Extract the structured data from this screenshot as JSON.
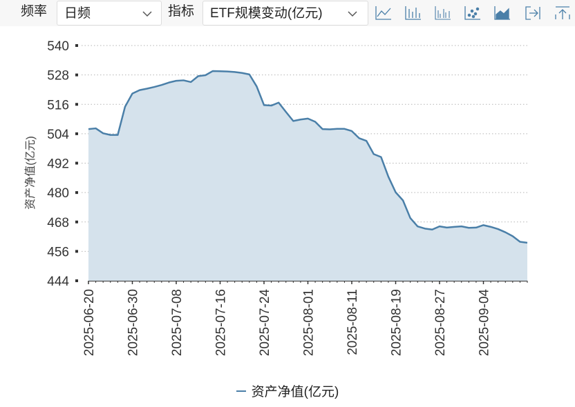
{
  "toolbar": {
    "frequency_label": "频率",
    "frequency_value": "日频",
    "indicator_label": "指标",
    "indicator_value": "ETF规模变动(亿元)",
    "icons": [
      "line-chart-icon",
      "bar-chart-icon",
      "bar-thin-chart-icon",
      "scatter-chart-icon",
      "area-chart-icon",
      "export-icon",
      "top-icon"
    ]
  },
  "colors": {
    "line": "#4a7fa8",
    "area": "#d5e2ec",
    "grid": "#b3b3b3",
    "axis": "#333333"
  },
  "chart_data": {
    "type": "area",
    "ylabel": "资产净值(亿元)",
    "ylim": [
      444,
      540
    ],
    "yticks": [
      444,
      456,
      468,
      480,
      492,
      504,
      516,
      528,
      540
    ],
    "xtick_labels": [
      "2025-06-20",
      "2025-06-30",
      "2025-07-08",
      "2025-07-16",
      "2025-07-24",
      "2025-08-01",
      "2025-08-11",
      "2025-08-19",
      "2025-08-27",
      "2025-09-04"
    ],
    "xtick_index": [
      0,
      6,
      12,
      18,
      24,
      30,
      36,
      42,
      48,
      54
    ],
    "grid": true,
    "legend": "bottom-center",
    "series": [
      {
        "name": "资产净值(亿元)",
        "values": [
          505.9,
          506.2,
          504.2,
          503.5,
          503.5,
          515.0,
          520.4,
          521.8,
          522.4,
          523.1,
          523.9,
          524.9,
          525.6,
          525.8,
          525.1,
          527.5,
          527.9,
          529.6,
          529.5,
          529.4,
          529.2,
          528.8,
          528.2,
          523.3,
          515.7,
          515.5,
          516.7,
          512.9,
          509.2,
          509.8,
          510.2,
          508.9,
          505.9,
          505.8,
          506.0,
          506.0,
          505.1,
          502.2,
          501.1,
          495.7,
          494.5,
          486.5,
          480.1,
          476.8,
          469.6,
          466.2,
          465.3,
          464.9,
          466.2,
          465.7,
          466.0,
          466.2,
          465.6,
          465.7,
          466.7,
          466.0,
          465.1,
          463.8,
          462.2,
          459.9,
          459.5
        ]
      }
    ]
  }
}
